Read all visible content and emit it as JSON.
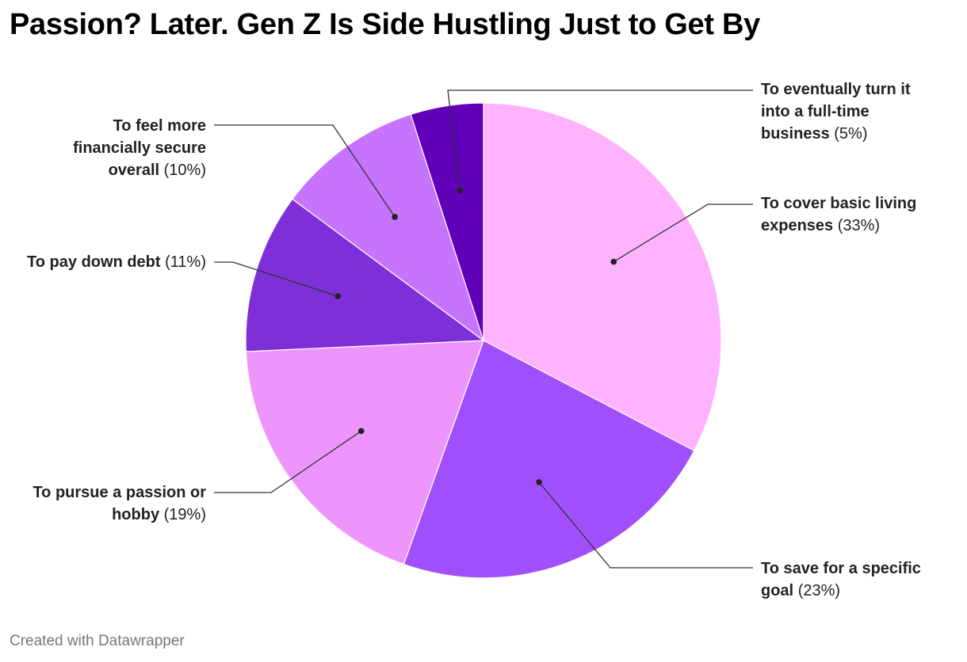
{
  "title": "Passion? Later. Gen Z Is Side Hustling Just to Get By",
  "credit": "Created with Datawrapper",
  "chart_data": {
    "type": "pie",
    "title": "Passion? Later. Gen Z Is Side Hustling Just to Get By",
    "slices": [
      {
        "label": "To cover basic living expenses",
        "value": 33,
        "value_label": "(33%)",
        "color": "#ffb3ff"
      },
      {
        "label": "To save for a specific goal",
        "value": 23,
        "value_label": "(23%)",
        "color": "#a14ffc"
      },
      {
        "label": "To pursue a passion or hobby",
        "value": 19,
        "value_label": "(19%)",
        "color": "#ed95fc"
      },
      {
        "label": "To pay down debt",
        "value": 11,
        "value_label": "(11%)",
        "color": "#7e2fd9"
      },
      {
        "label": "To feel more financially secure overall",
        "value": 10,
        "value_label": "(10%)",
        "color": "#c673fe"
      },
      {
        "label": "To eventually turn it into a full-time business",
        "value": 5,
        "value_label": "(5%)",
        "color": "#6100b8"
      }
    ],
    "legend": "none"
  }
}
